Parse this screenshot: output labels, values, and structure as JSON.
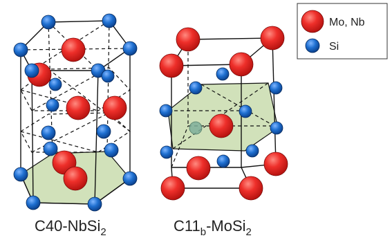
{
  "legend": {
    "items": [
      {
        "label": "Mo, Nb",
        "color": "#e8262a"
      },
      {
        "label": "Si",
        "color": "#1e6fd0"
      }
    ]
  },
  "structures": [
    {
      "base": "C40-NbSi",
      "sub": "2"
    },
    {
      "base": "C11",
      "sub1": "b",
      "mid": "-MoSi",
      "sub2": "2"
    }
  ],
  "colors": {
    "metal": "#e8262a",
    "silicon": "#1e6fd0",
    "plane": "#c9dcae",
    "line": "#111111"
  }
}
